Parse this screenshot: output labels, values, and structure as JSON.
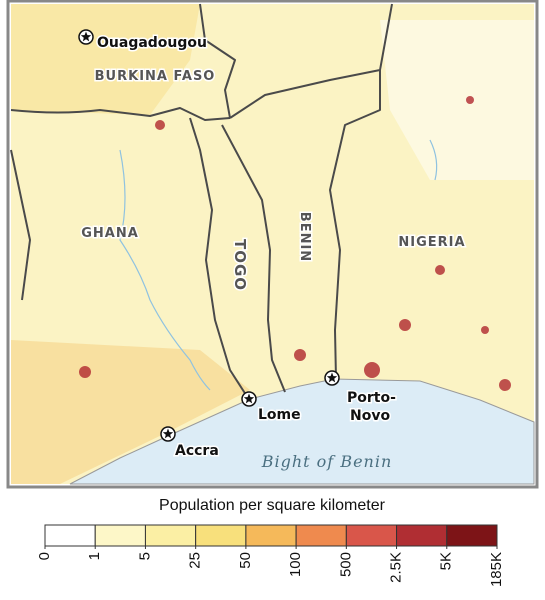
{
  "map": {
    "countries": [
      "BURKINA FASO",
      "GHANA",
      "TOGO",
      "BENIN",
      "NIGERIA"
    ],
    "cities": [
      {
        "name": "Ouagadougou"
      },
      {
        "name": "Accra"
      },
      {
        "name": "Lome"
      },
      {
        "name": "Porto-Novo",
        "label_lines": [
          "Porto-",
          "Novo"
        ]
      }
    ],
    "water_label": "Bight of Benin"
  },
  "legend": {
    "title": "Population per square kilometer",
    "breaks": [
      0,
      1,
      5,
      25,
      50,
      100,
      500,
      {
        "value": 2500,
        "label": "2.5K"
      },
      {
        "value": 5000,
        "label": "5K"
      },
      {
        "value": 185000,
        "label": "185K"
      }
    ],
    "colors": [
      "#ffffff",
      "#fdf7c8",
      "#fbefa4",
      "#f8e07c",
      "#f5b95a",
      "#ef8a4e",
      "#d9564a",
      "#b02e33",
      "#7d1417"
    ]
  }
}
